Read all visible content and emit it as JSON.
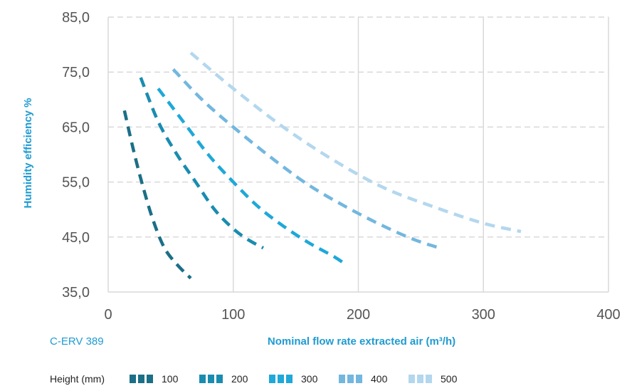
{
  "chart_data": {
    "type": "line",
    "title": "",
    "ylabel": "Humidity efficiency %",
    "xlabel": "Nominal flow rate extracted air (m³/h)",
    "model_label": "C-ERV 389",
    "legend_title": "Height (mm)",
    "xlim": [
      0,
      400
    ],
    "ylim": [
      35,
      85
    ],
    "x_ticks": [
      0,
      100,
      200,
      300,
      400
    ],
    "x_tick_labels": [
      "0",
      "100",
      "200",
      "300",
      "400"
    ],
    "y_ticks": [
      35,
      45,
      55,
      65,
      75,
      85
    ],
    "y_tick_labels": [
      "35,0",
      "45,0",
      "55,0",
      "65,0",
      "75,0",
      "85,0"
    ],
    "grid": {
      "vertical": "solid",
      "horizontal": "dashed"
    },
    "legend_position": "bottom",
    "series": [
      {
        "name": "100",
        "color": "#1b6f86",
        "points": [
          [
            13,
            68
          ],
          [
            20,
            61
          ],
          [
            28,
            54
          ],
          [
            36,
            48
          ],
          [
            45,
            43
          ],
          [
            55,
            40
          ],
          [
            66,
            37.5
          ]
        ]
      },
      {
        "name": "200",
        "color": "#1a8cb0",
        "points": [
          [
            26,
            74
          ],
          [
            40,
            66
          ],
          [
            55,
            60
          ],
          [
            70,
            55
          ],
          [
            85,
            50
          ],
          [
            100,
            46.5
          ],
          [
            112,
            44.5
          ],
          [
            124,
            43
          ]
        ]
      },
      {
        "name": "300",
        "color": "#1fa8d8",
        "points": [
          [
            40,
            72
          ],
          [
            60,
            66
          ],
          [
            80,
            60
          ],
          [
            100,
            55
          ],
          [
            120,
            50.5
          ],
          [
            140,
            47
          ],
          [
            160,
            44
          ],
          [
            180,
            41.5
          ],
          [
            190,
            40
          ]
        ]
      },
      {
        "name": "400",
        "color": "#73b7df",
        "points": [
          [
            52,
            75.5
          ],
          [
            75,
            70
          ],
          [
            100,
            65
          ],
          [
            130,
            59.5
          ],
          [
            160,
            54.5
          ],
          [
            190,
            50.5
          ],
          [
            220,
            47
          ],
          [
            245,
            44.5
          ],
          [
            265,
            43
          ]
        ]
      },
      {
        "name": "500",
        "color": "#b3d7ee",
        "points": [
          [
            66,
            78.5
          ],
          [
            100,
            72
          ],
          [
            140,
            65
          ],
          [
            180,
            59
          ],
          [
            220,
            54
          ],
          [
            260,
            50.5
          ],
          [
            300,
            47.5
          ],
          [
            330,
            46
          ]
        ]
      }
    ]
  }
}
